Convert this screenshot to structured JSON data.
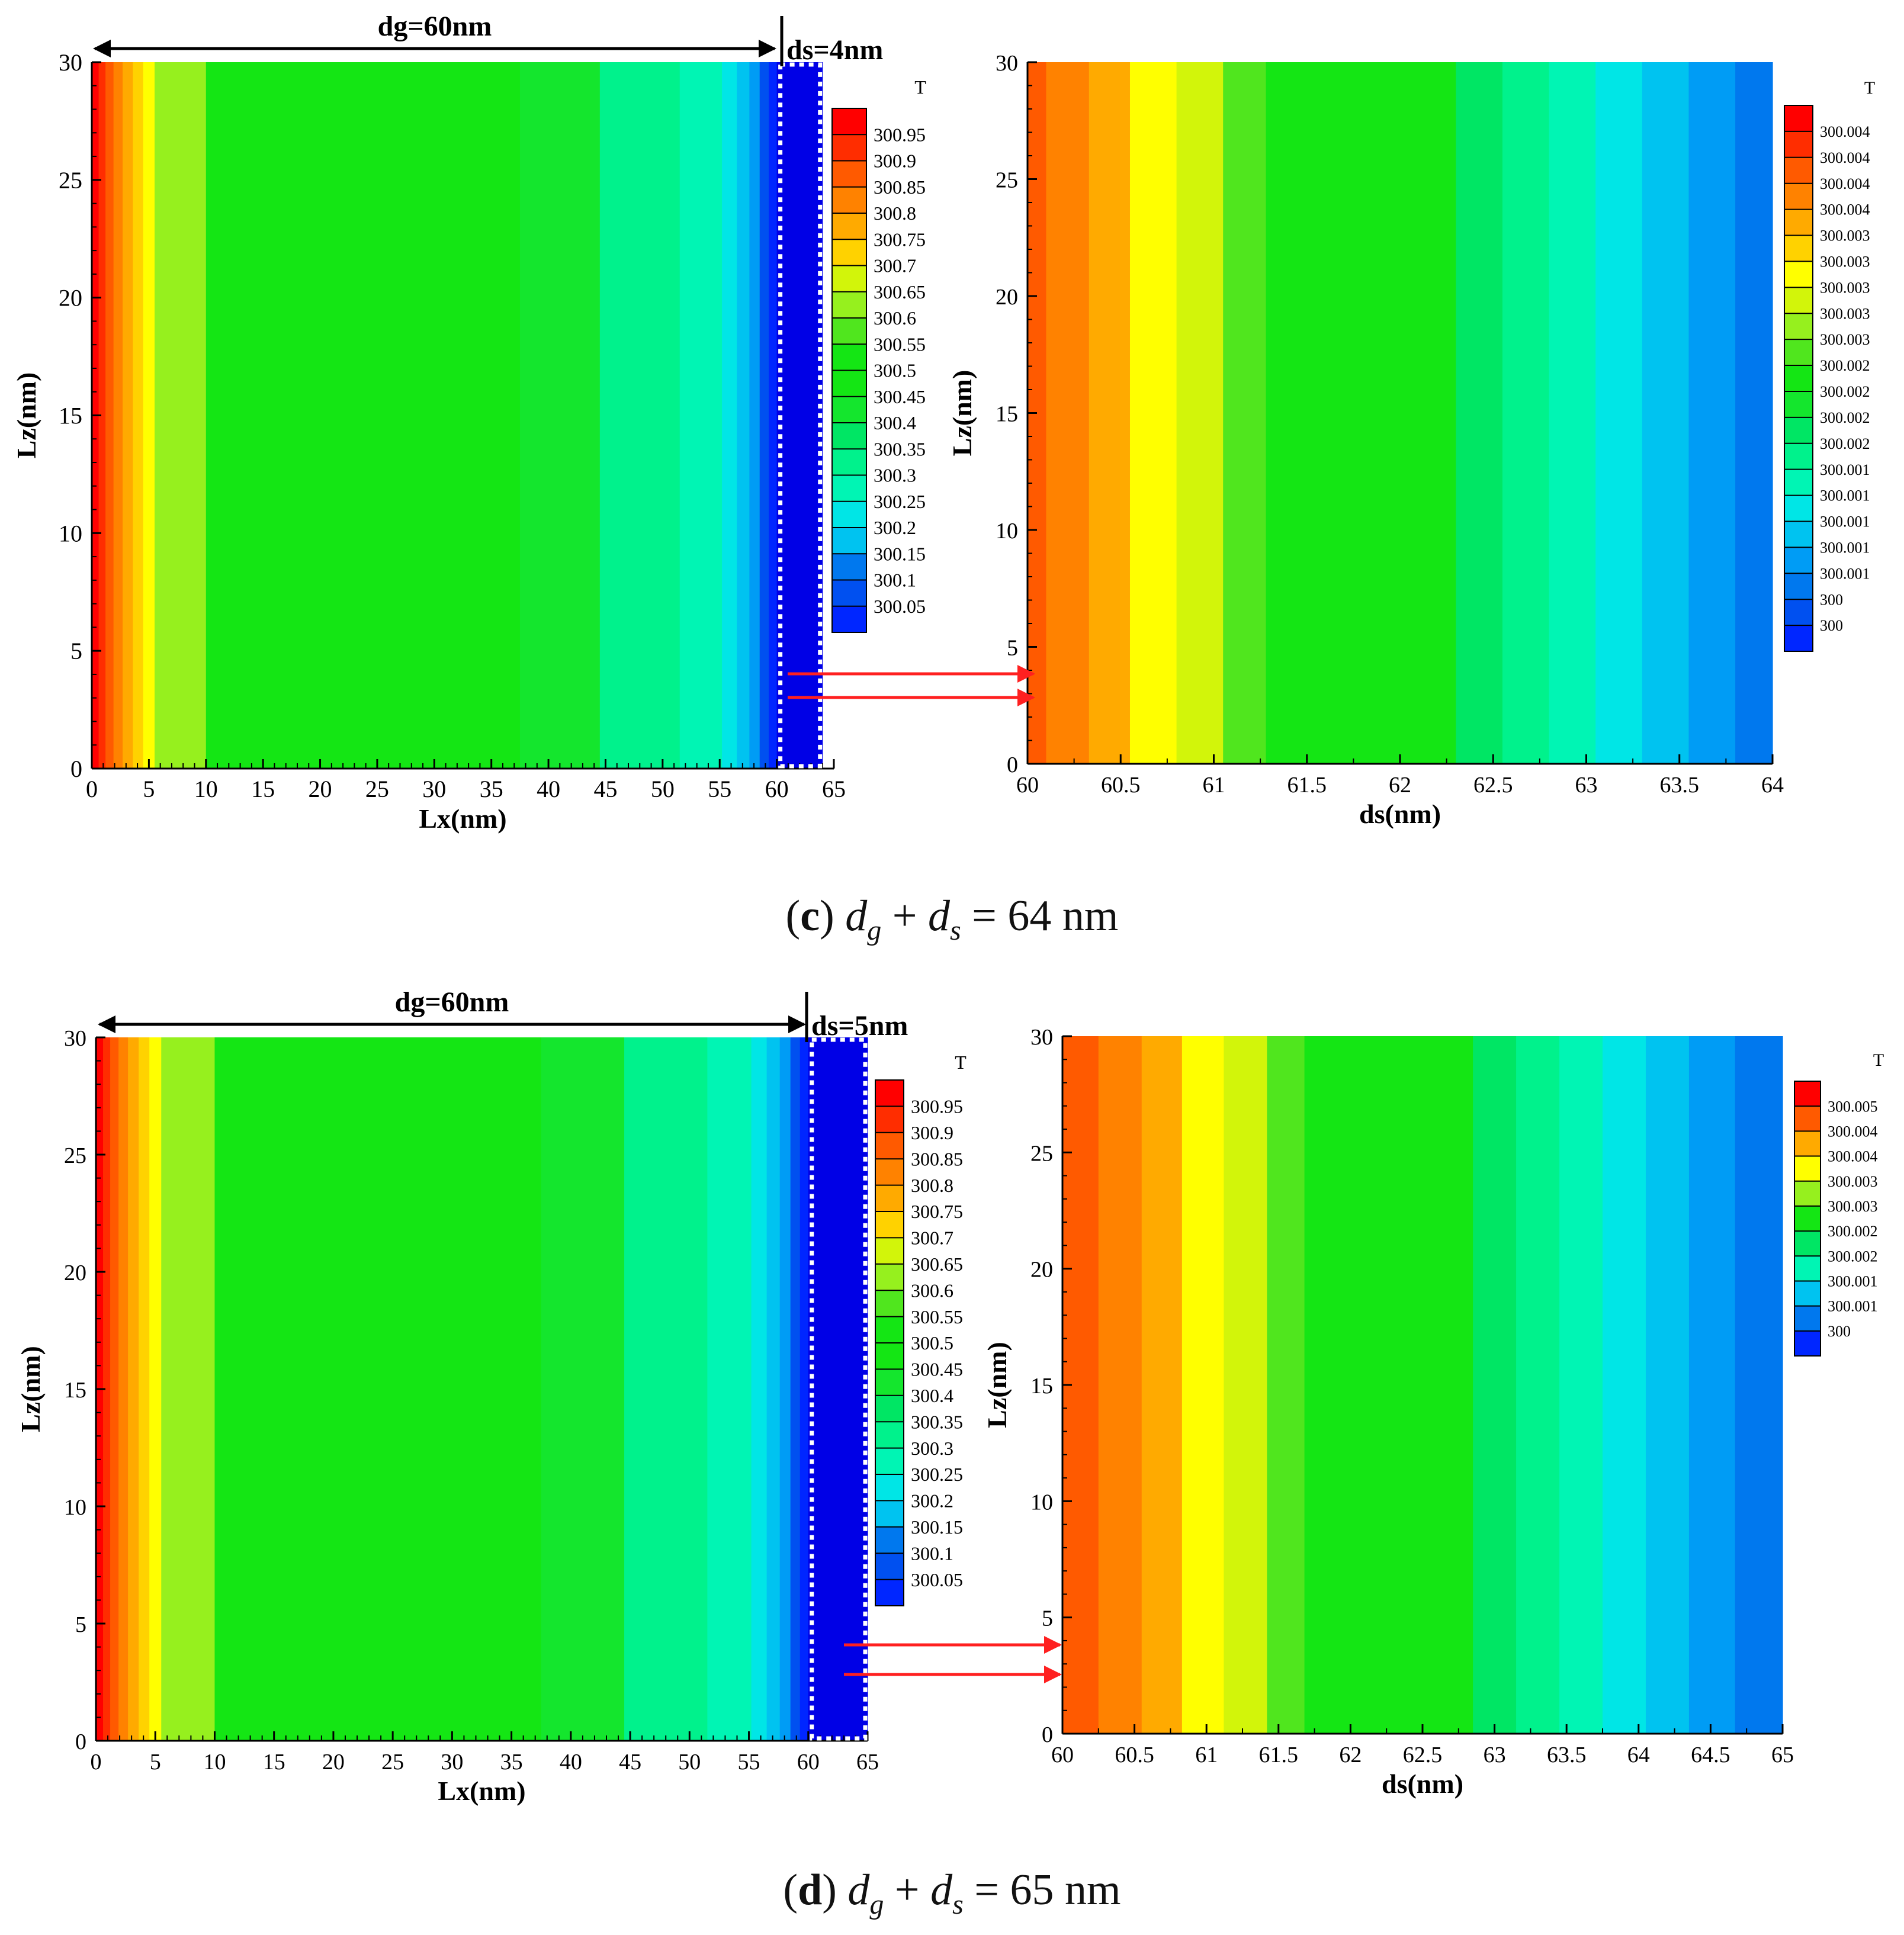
{
  "chart_data": [
    {
      "panel": "c",
      "caption": {
        "letter": "c",
        "text": "d_g + d_s = 64 nm",
        "total": "64",
        "unit": "nm"
      },
      "dg_label": "dg=60nm",
      "ds_label": "ds=4nm",
      "colors": [
        "#0000e6",
        "#0026ff",
        "#0050f0",
        "#0078ee",
        "#009cf5",
        "#00c3f0",
        "#00e6e6",
        "#00f5b4",
        "#00f28c",
        "#00e664",
        "#14e62d",
        "#14e614",
        "#50e61e",
        "#96f01e",
        "#d2f50a",
        "#ffff00",
        "#ffd200",
        "#ffaa00",
        "#ff8200",
        "#ff5a00",
        "#ff2d00",
        "#ff0000"
      ],
      "left": {
        "type": "heatmap",
        "xlabel": "Lx(nm)",
        "ylabel": "Lz(nm)",
        "xlim": [
          0,
          65
        ],
        "ylim": [
          0,
          30
        ],
        "xticks": [
          "0",
          "5",
          "10",
          "15",
          "20",
          "25",
          "30",
          "35",
          "40",
          "45",
          "50",
          "55",
          "60",
          "65"
        ],
        "yticks": [
          "0",
          "5",
          "10",
          "15",
          "20",
          "25",
          "30"
        ],
        "bands": [
          {
            "x0": 0,
            "x1": 0.6,
            "c": 21
          },
          {
            "x0": 0.6,
            "x1": 1.2,
            "c": 20
          },
          {
            "x0": 1.2,
            "x1": 1.9,
            "c": 19
          },
          {
            "x0": 1.9,
            "x1": 2.7,
            "c": 18
          },
          {
            "x0": 2.7,
            "x1": 3.6,
            "c": 17
          },
          {
            "x0": 3.6,
            "x1": 4.5,
            "c": 16
          },
          {
            "x0": 4.5,
            "x1": 5.5,
            "c": 15
          },
          {
            "x0": 5.5,
            "x1": 10,
            "c": 13
          },
          {
            "x0": 10,
            "x1": 37.5,
            "c": 11
          },
          {
            "x0": 37.5,
            "x1": 44.5,
            "c": 10
          },
          {
            "x0": 44.5,
            "x1": 51.5,
            "c": 8
          },
          {
            "x0": 51.5,
            "x1": 55.2,
            "c": 7
          },
          {
            "x0": 55.2,
            "x1": 56.5,
            "c": 6
          },
          {
            "x0": 56.5,
            "x1": 57.6,
            "c": 5
          },
          {
            "x0": 57.6,
            "x1": 58.5,
            "c": 4
          },
          {
            "x0": 58.5,
            "x1": 59.3,
            "c": 2
          },
          {
            "x0": 59.3,
            "x1": 60,
            "c": 1
          },
          {
            "x0": 60,
            "x1": 64,
            "c": 0
          }
        ],
        "legend": {
          "title": "T",
          "labels": [
            "300.95",
            "300.9",
            "300.85",
            "300.8",
            "300.75",
            "300.7",
            "300.65",
            "300.6",
            "300.55",
            "300.5",
            "300.45",
            "300.4",
            "300.35",
            "300.3",
            "300.25",
            "300.2",
            "300.15",
            "300.1",
            "300.05"
          ],
          "swatches": [
            21,
            20,
            19,
            18,
            17,
            16,
            14,
            13,
            12,
            11,
            11,
            10,
            9,
            8,
            7,
            6,
            5,
            3,
            2,
            1
          ]
        }
      },
      "right": {
        "type": "heatmap",
        "xlabel": "ds(nm)",
        "ylabel": "Lz(nm)",
        "xlim": [
          60,
          64
        ],
        "ylim": [
          0,
          30
        ],
        "xticks": [
          "60",
          "60.5",
          "61",
          "61.5",
          "62",
          "62.5",
          "63",
          "63.5",
          "64"
        ],
        "yticks": [
          "0",
          "5",
          "10",
          "15",
          "20",
          "25",
          "30"
        ],
        "bands": [
          {
            "x0": 60,
            "x1": 60.1,
            "c": 19
          },
          {
            "x0": 60.1,
            "x1": 60.33,
            "c": 18
          },
          {
            "x0": 60.33,
            "x1": 60.55,
            "c": 17
          },
          {
            "x0": 60.55,
            "x1": 60.8,
            "c": 15
          },
          {
            "x0": 60.8,
            "x1": 61.05,
            "c": 14
          },
          {
            "x0": 61.05,
            "x1": 61.28,
            "c": 12
          },
          {
            "x0": 61.28,
            "x1": 62.3,
            "c": 11
          },
          {
            "x0": 62.3,
            "x1": 62.55,
            "c": 9
          },
          {
            "x0": 62.55,
            "x1": 62.8,
            "c": 8
          },
          {
            "x0": 62.8,
            "x1": 63.05,
            "c": 7
          },
          {
            "x0": 63.05,
            "x1": 63.3,
            "c": 6
          },
          {
            "x0": 63.3,
            "x1": 63.55,
            "c": 5
          },
          {
            "x0": 63.55,
            "x1": 63.8,
            "c": 4
          },
          {
            "x0": 63.8,
            "x1": 64,
            "c": 3
          }
        ],
        "legend": {
          "title": "T",
          "labels": [
            "300.004",
            "300.004",
            "300.004",
            "300.004",
            "300.003",
            "300.003",
            "300.003",
            "300.003",
            "300.003",
            "300.002",
            "300.002",
            "300.002",
            "300.002",
            "300.001",
            "300.001",
            "300.001",
            "300.001",
            "300.001",
            "300",
            "300"
          ],
          "swatches": [
            21,
            20,
            19,
            18,
            17,
            16,
            15,
            14,
            13,
            12,
            11,
            10,
            9,
            8,
            7,
            6,
            5,
            4,
            3,
            2,
            1
          ]
        }
      }
    },
    {
      "panel": "d",
      "caption": {
        "letter": "d",
        "text": "d_g + d_s = 65 nm",
        "total": "65",
        "unit": "nm"
      },
      "dg_label": "dg=60nm",
      "ds_label": "ds=5nm",
      "colors": [
        "#0000e6",
        "#0026ff",
        "#0050f0",
        "#0078ee",
        "#009cf5",
        "#00c3f0",
        "#00e6e6",
        "#00f5b4",
        "#00f28c",
        "#00e664",
        "#14e62d",
        "#14e614",
        "#50e61e",
        "#96f01e",
        "#d2f50a",
        "#ffff00",
        "#ffd200",
        "#ffaa00",
        "#ff8200",
        "#ff5a00",
        "#ff2d00",
        "#ff0000"
      ],
      "left": {
        "type": "heatmap",
        "xlabel": "Lx(nm)",
        "ylabel": "Lz(nm)",
        "xlim": [
          0,
          65
        ],
        "ylim": [
          0,
          30
        ],
        "xticks": [
          "0",
          "5",
          "10",
          "15",
          "20",
          "25",
          "30",
          "35",
          "40",
          "45",
          "50",
          "55",
          "60",
          "65"
        ],
        "yticks": [
          "0",
          "5",
          "10",
          "15",
          "20",
          "25",
          "30"
        ],
        "bands": [
          {
            "x0": 0,
            "x1": 0.6,
            "c": 21
          },
          {
            "x0": 0.6,
            "x1": 1.2,
            "c": 20
          },
          {
            "x0": 1.2,
            "x1": 1.9,
            "c": 19
          },
          {
            "x0": 1.9,
            "x1": 2.7,
            "c": 18
          },
          {
            "x0": 2.7,
            "x1": 3.6,
            "c": 17
          },
          {
            "x0": 3.6,
            "x1": 4.5,
            "c": 16
          },
          {
            "x0": 4.5,
            "x1": 5.5,
            "c": 15
          },
          {
            "x0": 5.5,
            "x1": 10,
            "c": 13
          },
          {
            "x0": 10,
            "x1": 37.5,
            "c": 11
          },
          {
            "x0": 37.5,
            "x1": 44.5,
            "c": 10
          },
          {
            "x0": 44.5,
            "x1": 51.5,
            "c": 8
          },
          {
            "x0": 51.5,
            "x1": 55.2,
            "c": 7
          },
          {
            "x0": 55.2,
            "x1": 56.5,
            "c": 6
          },
          {
            "x0": 56.5,
            "x1": 57.6,
            "c": 5
          },
          {
            "x0": 57.6,
            "x1": 58.5,
            "c": 4
          },
          {
            "x0": 58.5,
            "x1": 59.3,
            "c": 2
          },
          {
            "x0": 59.3,
            "x1": 60,
            "c": 1
          },
          {
            "x0": 60,
            "x1": 65,
            "c": 0
          }
        ],
        "legend": {
          "title": "T",
          "labels": [
            "300.95",
            "300.9",
            "300.85",
            "300.8",
            "300.75",
            "300.7",
            "300.65",
            "300.6",
            "300.55",
            "300.5",
            "300.45",
            "300.4",
            "300.35",
            "300.3",
            "300.25",
            "300.2",
            "300.15",
            "300.1",
            "300.05"
          ],
          "swatches": [
            21,
            20,
            19,
            18,
            17,
            16,
            14,
            13,
            12,
            11,
            11,
            10,
            9,
            8,
            7,
            6,
            5,
            3,
            2,
            1
          ]
        }
      },
      "right": {
        "type": "heatmap",
        "xlabel": "ds(nm)",
        "ylabel": "Lz(nm)",
        "xlim": [
          60,
          65
        ],
        "ylim": [
          0,
          30
        ],
        "xticks": [
          "60",
          "60.5",
          "61",
          "61.5",
          "62",
          "62.5",
          "63",
          "63.5",
          "64",
          "64.5",
          "65"
        ],
        "yticks": [
          "0",
          "5",
          "10",
          "15",
          "20",
          "25",
          "30"
        ],
        "bands": [
          {
            "x0": 60,
            "x1": 60.25,
            "c": 19
          },
          {
            "x0": 60.25,
            "x1": 60.55,
            "c": 18
          },
          {
            "x0": 60.55,
            "x1": 60.83,
            "c": 17
          },
          {
            "x0": 60.83,
            "x1": 61.12,
            "c": 15
          },
          {
            "x0": 61.12,
            "x1": 61.42,
            "c": 14
          },
          {
            "x0": 61.42,
            "x1": 61.68,
            "c": 12
          },
          {
            "x0": 61.68,
            "x1": 62.85,
            "c": 11
          },
          {
            "x0": 62.85,
            "x1": 63.15,
            "c": 9
          },
          {
            "x0": 63.15,
            "x1": 63.45,
            "c": 8
          },
          {
            "x0": 63.45,
            "x1": 63.75,
            "c": 7
          },
          {
            "x0": 63.75,
            "x1": 64.05,
            "c": 6
          },
          {
            "x0": 64.05,
            "x1": 64.35,
            "c": 5
          },
          {
            "x0": 64.35,
            "x1": 64.67,
            "c": 4
          },
          {
            "x0": 64.67,
            "x1": 65,
            "c": 3
          }
        ],
        "legend": {
          "title": "T",
          "labels": [
            "300.005",
            "300.004",
            "300.004",
            "300.003",
            "300.003",
            "300.002",
            "300.002",
            "300.001",
            "300.001",
            "300"
          ],
          "swatches": [
            21,
            19,
            17,
            15,
            13,
            11,
            9,
            7,
            5,
            3,
            1
          ]
        }
      }
    }
  ]
}
